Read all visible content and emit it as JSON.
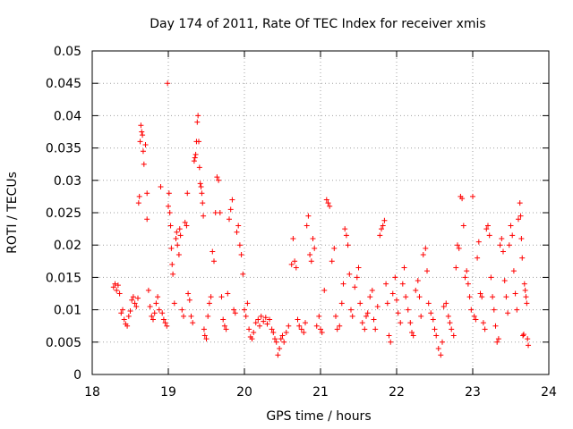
{
  "chart_data": {
    "type": "scatter",
    "title": "Day 174 of 2011, Rate Of TEC Index for receiver xmis",
    "xlabel": "GPS time / hours",
    "ylabel": "ROTI / TECUs",
    "xlim": [
      18,
      24
    ],
    "ylim": [
      0,
      0.05
    ],
    "x_ticks": [
      "18",
      "19",
      "20",
      "21",
      "22",
      "23",
      "24"
    ],
    "y_ticks": [
      "0",
      "0.005",
      "0.01",
      "0.015",
      "0.02",
      "0.025",
      "0.03",
      "0.035",
      "0.04",
      "0.045",
      "0.05"
    ],
    "grid": true,
    "marker": "plus",
    "color": "#ff0000",
    "series": [
      {
        "name": "ROTI",
        "points": [
          [
            18.28,
            0.0135
          ],
          [
            18.3,
            0.014
          ],
          [
            18.32,
            0.013
          ],
          [
            18.34,
            0.0138
          ],
          [
            18.36,
            0.0125
          ],
          [
            18.38,
            0.0095
          ],
          [
            18.4,
            0.01
          ],
          [
            18.42,
            0.0085
          ],
          [
            18.44,
            0.0078
          ],
          [
            18.46,
            0.0075
          ],
          [
            18.48,
            0.009
          ],
          [
            18.5,
            0.0098
          ],
          [
            18.52,
            0.0115
          ],
          [
            18.54,
            0.012
          ],
          [
            18.56,
            0.011
          ],
          [
            18.58,
            0.0105
          ],
          [
            18.6,
            0.0118
          ],
          [
            18.61,
            0.0265
          ],
          [
            18.62,
            0.0275
          ],
          [
            18.63,
            0.036
          ],
          [
            18.64,
            0.0385
          ],
          [
            18.65,
            0.0375
          ],
          [
            18.66,
            0.037
          ],
          [
            18.67,
            0.0345
          ],
          [
            18.68,
            0.0325
          ],
          [
            18.7,
            0.0355
          ],
          [
            18.72,
            0.024
          ],
          [
            18.72,
            0.028
          ],
          [
            18.74,
            0.013
          ],
          [
            18.76,
            0.0105
          ],
          [
            18.78,
            0.009
          ],
          [
            18.8,
            0.0085
          ],
          [
            18.82,
            0.0095
          ],
          [
            18.84,
            0.011
          ],
          [
            18.86,
            0.012
          ],
          [
            18.88,
            0.01
          ],
          [
            18.9,
            0.029
          ],
          [
            18.92,
            0.0095
          ],
          [
            18.94,
            0.0085
          ],
          [
            18.96,
            0.008
          ],
          [
            18.98,
            0.0075
          ],
          [
            18.99,
            0.045
          ],
          [
            19.0,
            0.026
          ],
          [
            19.01,
            0.028
          ],
          [
            19.02,
            0.025
          ],
          [
            19.03,
            0.023
          ],
          [
            19.04,
            0.0195
          ],
          [
            19.05,
            0.017
          ],
          [
            19.06,
            0.0155
          ],
          [
            19.08,
            0.011
          ],
          [
            19.1,
            0.021
          ],
          [
            19.11,
            0.022
          ],
          [
            19.12,
            0.02
          ],
          [
            19.14,
            0.0185
          ],
          [
            19.15,
            0.0225
          ],
          [
            19.16,
            0.0215
          ],
          [
            19.18,
            0.01
          ],
          [
            19.2,
            0.009
          ],
          [
            19.22,
            0.0235
          ],
          [
            19.24,
            0.023
          ],
          [
            19.25,
            0.028
          ],
          [
            19.26,
            0.0125
          ],
          [
            19.28,
            0.0115
          ],
          [
            19.3,
            0.009
          ],
          [
            19.32,
            0.008
          ],
          [
            19.34,
            0.033
          ],
          [
            19.35,
            0.0335
          ],
          [
            19.36,
            0.034
          ],
          [
            19.37,
            0.036
          ],
          [
            19.38,
            0.039
          ],
          [
            19.39,
            0.04
          ],
          [
            19.4,
            0.036
          ],
          [
            19.41,
            0.032
          ],
          [
            19.42,
            0.0295
          ],
          [
            19.43,
            0.029
          ],
          [
            19.44,
            0.028
          ],
          [
            19.45,
            0.0265
          ],
          [
            19.46,
            0.0245
          ],
          [
            19.47,
            0.007
          ],
          [
            19.48,
            0.006
          ],
          [
            19.5,
            0.0055
          ],
          [
            19.52,
            0.009
          ],
          [
            19.54,
            0.011
          ],
          [
            19.56,
            0.012
          ],
          [
            19.58,
            0.019
          ],
          [
            19.6,
            0.0175
          ],
          [
            19.62,
            0.025
          ],
          [
            19.64,
            0.0305
          ],
          [
            19.66,
            0.03
          ],
          [
            19.68,
            0.025
          ],
          [
            19.7,
            0.012
          ],
          [
            19.72,
            0.0085
          ],
          [
            19.74,
            0.0075
          ],
          [
            19.76,
            0.007
          ],
          [
            19.78,
            0.0125
          ],
          [
            19.8,
            0.024
          ],
          [
            19.82,
            0.0255
          ],
          [
            19.84,
            0.027
          ],
          [
            19.86,
            0.01
          ],
          [
            19.88,
            0.0095
          ],
          [
            19.9,
            0.022
          ],
          [
            19.92,
            0.023
          ],
          [
            19.94,
            0.02
          ],
          [
            19.96,
            0.0185
          ],
          [
            19.98,
            0.0155
          ],
          [
            20.0,
            0.01
          ],
          [
            20.02,
            0.009
          ],
          [
            20.04,
            0.011
          ],
          [
            20.06,
            0.007
          ],
          [
            20.08,
            0.0058
          ],
          [
            20.1,
            0.0055
          ],
          [
            20.12,
            0.0065
          ],
          [
            20.15,
            0.008
          ],
          [
            20.18,
            0.0085
          ],
          [
            20.2,
            0.0075
          ],
          [
            20.22,
            0.009
          ],
          [
            20.25,
            0.0082
          ],
          [
            20.28,
            0.0088
          ],
          [
            20.3,
            0.0078
          ],
          [
            20.33,
            0.0085
          ],
          [
            20.36,
            0.007
          ],
          [
            20.38,
            0.0065
          ],
          [
            20.4,
            0.0055
          ],
          [
            20.42,
            0.005
          ],
          [
            20.44,
            0.003
          ],
          [
            20.46,
            0.004
          ],
          [
            20.48,
            0.0055
          ],
          [
            20.5,
            0.006
          ],
          [
            20.52,
            0.005
          ],
          [
            20.55,
            0.0065
          ],
          [
            20.58,
            0.0075
          ],
          [
            20.62,
            0.017
          ],
          [
            20.64,
            0.021
          ],
          [
            20.66,
            0.0175
          ],
          [
            20.68,
            0.0165
          ],
          [
            20.7,
            0.0085
          ],
          [
            20.72,
            0.0075
          ],
          [
            20.75,
            0.007
          ],
          [
            20.78,
            0.0065
          ],
          [
            20.8,
            0.008
          ],
          [
            20.82,
            0.023
          ],
          [
            20.84,
            0.0245
          ],
          [
            20.86,
            0.0185
          ],
          [
            20.88,
            0.0175
          ],
          [
            20.9,
            0.021
          ],
          [
            20.92,
            0.0195
          ],
          [
            20.95,
            0.0075
          ],
          [
            20.98,
            0.009
          ],
          [
            21.0,
            0.007
          ],
          [
            21.02,
            0.0065
          ],
          [
            21.05,
            0.013
          ],
          [
            21.08,
            0.027
          ],
          [
            21.1,
            0.0265
          ],
          [
            21.12,
            0.026
          ],
          [
            21.15,
            0.0175
          ],
          [
            21.18,
            0.0195
          ],
          [
            21.2,
            0.009
          ],
          [
            21.22,
            0.007
          ],
          [
            21.25,
            0.0075
          ],
          [
            21.28,
            0.011
          ],
          [
            21.3,
            0.014
          ],
          [
            21.32,
            0.0225
          ],
          [
            21.34,
            0.0215
          ],
          [
            21.36,
            0.02
          ],
          [
            21.38,
            0.0155
          ],
          [
            21.4,
            0.01
          ],
          [
            21.42,
            0.009
          ],
          [
            21.45,
            0.0135
          ],
          [
            21.48,
            0.015
          ],
          [
            21.5,
            0.0165
          ],
          [
            21.52,
            0.011
          ],
          [
            21.55,
            0.008
          ],
          [
            21.58,
            0.007
          ],
          [
            21.6,
            0.009
          ],
          [
            21.62,
            0.0095
          ],
          [
            21.65,
            0.012
          ],
          [
            21.68,
            0.013
          ],
          [
            21.7,
            0.0085
          ],
          [
            21.72,
            0.007
          ],
          [
            21.75,
            0.0105
          ],
          [
            21.78,
            0.0215
          ],
          [
            21.8,
            0.0225
          ],
          [
            21.82,
            0.023
          ],
          [
            21.84,
            0.0238
          ],
          [
            21.86,
            0.014
          ],
          [
            21.88,
            0.011
          ],
          [
            21.9,
            0.006
          ],
          [
            21.92,
            0.005
          ],
          [
            21.95,
            0.0125
          ],
          [
            21.98,
            0.015
          ],
          [
            22.0,
            0.0115
          ],
          [
            22.02,
            0.0095
          ],
          [
            22.05,
            0.008
          ],
          [
            22.08,
            0.014
          ],
          [
            22.1,
            0.0165
          ],
          [
            22.12,
            0.012
          ],
          [
            22.15,
            0.01
          ],
          [
            22.18,
            0.008
          ],
          [
            22.2,
            0.0065
          ],
          [
            22.22,
            0.006
          ],
          [
            22.25,
            0.013
          ],
          [
            22.28,
            0.0145
          ],
          [
            22.3,
            0.012
          ],
          [
            22.32,
            0.009
          ],
          [
            22.35,
            0.0185
          ],
          [
            22.38,
            0.0195
          ],
          [
            22.4,
            0.016
          ],
          [
            22.42,
            0.011
          ],
          [
            22.45,
            0.0095
          ],
          [
            22.48,
            0.0085
          ],
          [
            22.5,
            0.007
          ],
          [
            22.52,
            0.006
          ],
          [
            22.55,
            0.004
          ],
          [
            22.58,
            0.003
          ],
          [
            22.6,
            0.005
          ],
          [
            22.62,
            0.0105
          ],
          [
            22.65,
            0.011
          ],
          [
            22.68,
            0.009
          ],
          [
            22.7,
            0.008
          ],
          [
            22.72,
            0.007
          ],
          [
            22.75,
            0.006
          ],
          [
            22.78,
            0.0165
          ],
          [
            22.8,
            0.02
          ],
          [
            22.82,
            0.0195
          ],
          [
            22.84,
            0.0275
          ],
          [
            22.86,
            0.0272
          ],
          [
            22.88,
            0.023
          ],
          [
            22.9,
            0.015
          ],
          [
            22.92,
            0.016
          ],
          [
            22.94,
            0.014
          ],
          [
            22.96,
            0.012
          ],
          [
            22.98,
            0.01
          ],
          [
            23.0,
            0.0275
          ],
          [
            23.02,
            0.009
          ],
          [
            23.04,
            0.0085
          ],
          [
            23.06,
            0.018
          ],
          [
            23.08,
            0.0205
          ],
          [
            23.1,
            0.0125
          ],
          [
            23.12,
            0.012
          ],
          [
            23.14,
            0.008
          ],
          [
            23.16,
            0.007
          ],
          [
            23.18,
            0.0225
          ],
          [
            23.2,
            0.023
          ],
          [
            23.22,
            0.0215
          ],
          [
            23.24,
            0.015
          ],
          [
            23.26,
            0.012
          ],
          [
            23.28,
            0.01
          ],
          [
            23.3,
            0.0075
          ],
          [
            23.32,
            0.005
          ],
          [
            23.34,
            0.0055
          ],
          [
            23.36,
            0.02
          ],
          [
            23.38,
            0.021
          ],
          [
            23.4,
            0.019
          ],
          [
            23.42,
            0.0145
          ],
          [
            23.44,
            0.012
          ],
          [
            23.46,
            0.0095
          ],
          [
            23.48,
            0.02
          ],
          [
            23.5,
            0.023
          ],
          [
            23.52,
            0.0215
          ],
          [
            23.54,
            0.016
          ],
          [
            23.56,
            0.0125
          ],
          [
            23.58,
            0.01
          ],
          [
            23.6,
            0.024
          ],
          [
            23.62,
            0.0265
          ],
          [
            23.63,
            0.0245
          ],
          [
            23.64,
            0.021
          ],
          [
            23.65,
            0.018
          ],
          [
            23.66,
            0.006
          ],
          [
            23.67,
            0.0062
          ],
          [
            23.68,
            0.014
          ],
          [
            23.69,
            0.013
          ],
          [
            23.7,
            0.012
          ],
          [
            23.71,
            0.011
          ],
          [
            23.72,
            0.0055
          ],
          [
            23.73,
            0.0045
          ]
        ]
      }
    ]
  }
}
